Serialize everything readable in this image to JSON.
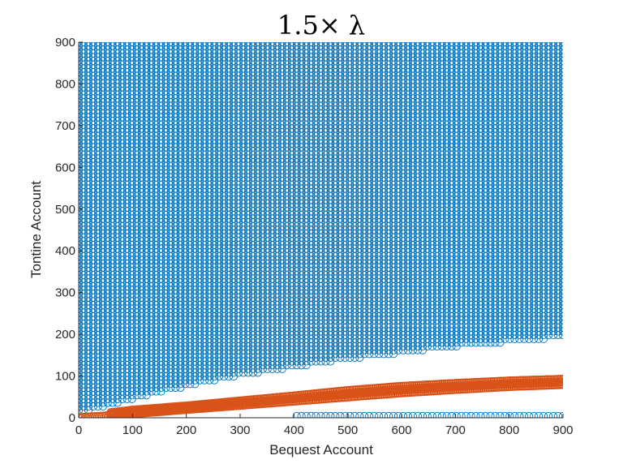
{
  "chart_data": {
    "type": "scatter",
    "title": "1.5× λ",
    "xlabel": "Bequest Account",
    "ylabel": "Tontine Account",
    "xlim": [
      0,
      900
    ],
    "ylim": [
      0,
      900
    ],
    "xticks": [
      "0",
      "100",
      "200",
      "300",
      "400",
      "500",
      "600",
      "700",
      "800",
      "900"
    ],
    "yticks": [
      "0",
      "100",
      "200",
      "300",
      "400",
      "500",
      "600",
      "700",
      "800",
      "900"
    ],
    "grid": false,
    "legend": "none",
    "series": [
      {
        "color": "#0072BD",
        "marker": "open-circle",
        "description_points": {
          "grid_step_x": 9,
          "grid_step_y": 9,
          "region": "y >= lower boundary, plus a row at y ~ 5 for x >= 400",
          "lower_boundary_x": [
            0,
            100,
            200,
            300,
            400,
            500,
            600,
            700,
            800,
            900
          ],
          "lower_boundary_y": [
            10,
            45,
            75,
            100,
            120,
            140,
            155,
            170,
            182,
            192
          ],
          "y_max": 900
        }
      },
      {
        "color": "#D95319",
        "marker": "open-circle",
        "band_x": [
          0,
          60,
          100,
          200,
          300,
          400,
          500,
          600,
          700,
          800,
          900
        ],
        "band_y_low": [
          0,
          5,
          10,
          20,
          30,
          40,
          50,
          60,
          68,
          75,
          80
        ],
        "band_y_high": [
          5,
          12,
          18,
          28,
          40,
          52,
          65,
          75,
          82,
          88,
          92
        ]
      }
    ]
  }
}
